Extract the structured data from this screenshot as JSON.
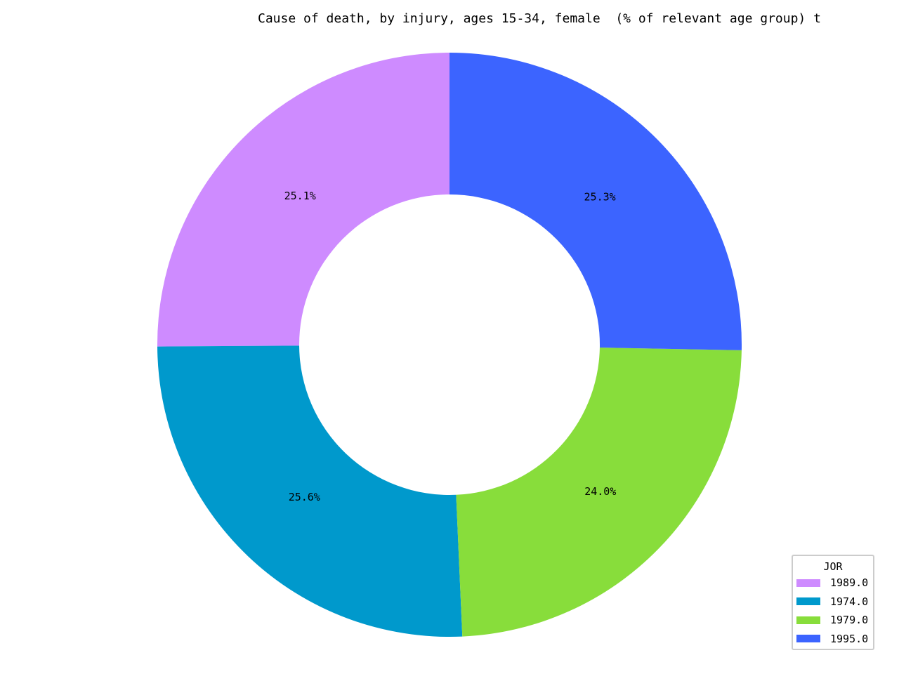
{
  "chart_data": {
    "type": "pie",
    "variant": "donut",
    "title": "Cause of death, by injury, ages 15-34, female  (% of relevant age group) t",
    "legend_title": "JOR",
    "legend_position": "lower-right",
    "start_angle_deg": 90,
    "direction": "counterclockwise",
    "slices": [
      {
        "label": "1989.0",
        "percent": 25.1,
        "percent_label": "25.1%",
        "color": "#ce8bff"
      },
      {
        "label": "1974.0",
        "percent": 25.6,
        "percent_label": "25.6%",
        "color": "#0099cc"
      },
      {
        "label": "1979.0",
        "percent": 24.0,
        "percent_label": "24.0%",
        "color": "#88dd3b"
      },
      {
        "label": "1995.0",
        "percent": 25.3,
        "percent_label": "25.3%",
        "color": "#3c64ff"
      }
    ]
  }
}
